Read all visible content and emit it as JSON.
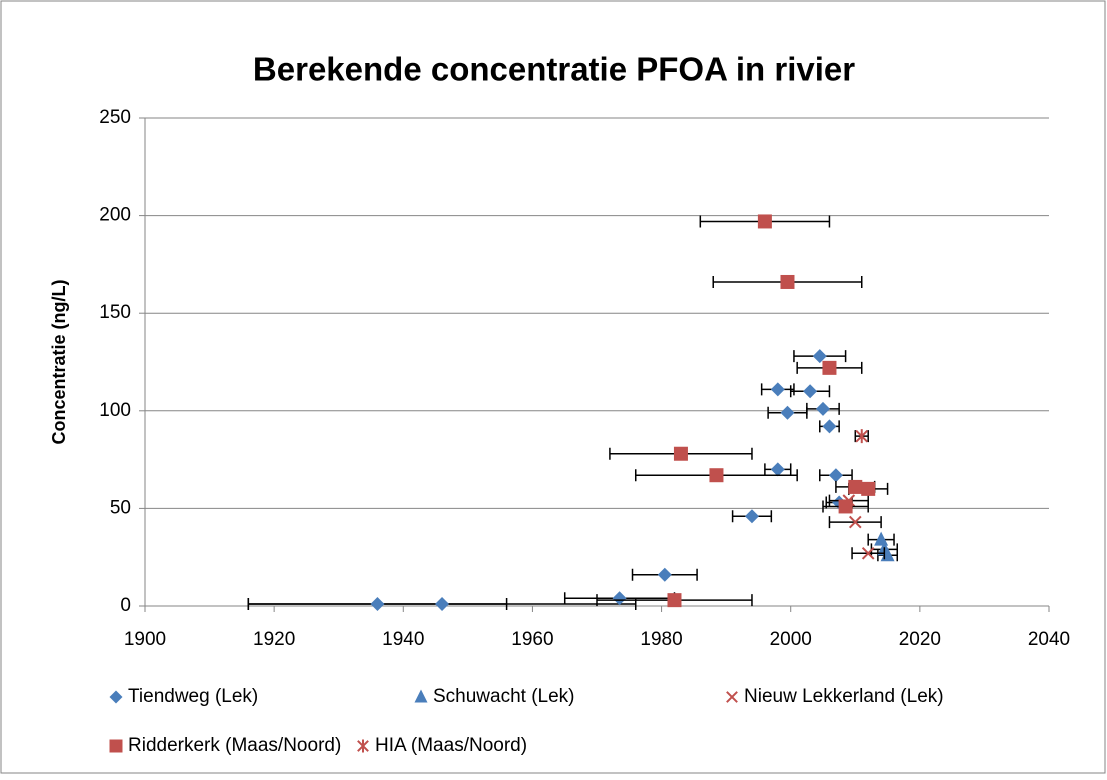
{
  "chart_data": {
    "type": "scatter",
    "title": "Berekende concentratie PFOA in rivier",
    "y_label": "Concentratie (ng/L)",
    "xlim": [
      1900,
      2040
    ],
    "xticks": [
      1900,
      1920,
      1940,
      1960,
      1980,
      2000,
      2020,
      2040
    ],
    "ylim": [
      0,
      250
    ],
    "yticks": [
      0,
      50,
      100,
      150,
      200,
      250
    ],
    "grid": true,
    "legend": "bottom",
    "series": [
      {
        "name": "Tiendweg (Lek)",
        "color": "#4a7ebb",
        "marker": "diamond",
        "x": [
          1936,
          1946,
          1973.5,
          1980.5,
          1994,
          1998,
          1998,
          1999.5,
          2003,
          2004.5,
          2005,
          2006,
          2007,
          2007.5
        ],
        "values": [
          1,
          1,
          4,
          16,
          46,
          70,
          111,
          99,
          110,
          128,
          101,
          92,
          67,
          53
        ],
        "xerr": [
          20,
          30,
          8.5,
          5,
          3,
          2,
          2.5,
          3,
          3,
          4,
          2.5,
          1.5,
          2.5,
          2
        ]
      },
      {
        "name": "Schuwacht (Lek)",
        "color": "#4a7ebb",
        "marker": "triangle",
        "x": [
          2014,
          2014.5,
          2015
        ],
        "values": [
          34,
          29,
          26
        ],
        "xerr": [
          2,
          2,
          1.5
        ]
      },
      {
        "name": "Nieuw Lekkerland (Lek)",
        "color": "#c0504d",
        "marker": "x",
        "x": [
          2009,
          2010,
          2012
        ],
        "values": [
          54,
          43,
          27
        ],
        "xerr": [
          3,
          4,
          2.5
        ]
      },
      {
        "name": "Ridderkerk (Maas/Noord)",
        "color": "#c0504d",
        "marker": "square",
        "x": [
          1996,
          1999.5,
          2006,
          1983,
          1988.5,
          2010,
          2012,
          2008.5,
          1982
        ],
        "values": [
          197,
          166,
          122,
          78,
          67,
          61,
          60,
          51,
          3
        ],
        "xerr": [
          10,
          11.5,
          5,
          11,
          12.5,
          3,
          3,
          3.5,
          12
        ]
      },
      {
        "name": "HIA (Maas/Noord)",
        "color": "#c0504d",
        "marker": "star",
        "x": [
          2011
        ],
        "values": [
          87
        ],
        "xerr": [
          1
        ]
      }
    ]
  }
}
